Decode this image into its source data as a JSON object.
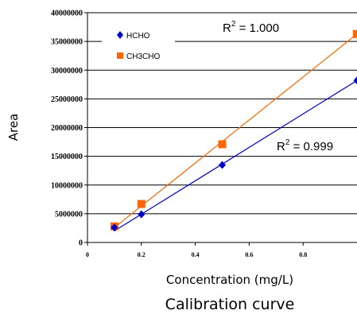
{
  "chart_data": {
    "type": "scatter",
    "xlabel": "Concentration (mg/L)",
    "ylabel": "Area",
    "caption": "Calibration curve",
    "xlim": [
      0,
      1.0
    ],
    "ylim": [
      0,
      40000000
    ],
    "x_ticks": [
      "0",
      "0.2",
      "0.4",
      "0.6",
      "0.8"
    ],
    "y_ticks": [
      "0",
      "5000000",
      "10000000",
      "15000000",
      "20000000",
      "25000000",
      "30000000",
      "35000000",
      "40000000"
    ],
    "grid": "horizontal",
    "legend_position": "top-left",
    "series": [
      {
        "name": "HCHO",
        "marker": "diamond",
        "color": "#0000cc",
        "x": [
          0.1,
          0.2,
          0.5,
          1.0
        ],
        "y": [
          2600000,
          4900000,
          13500000,
          28200000
        ],
        "fit_line": {
          "x": [
            0.1,
            1.0
          ],
          "y": [
            2000000,
            28200000
          ]
        },
        "r2_label": "R",
        "r2_sup": "2",
        "r2_value": " = 0.999"
      },
      {
        "name": "CH3CHO",
        "marker": "square",
        "color": "#ff6600",
        "x": [
          0.1,
          0.2,
          0.5,
          1.0
        ],
        "y": [
          2800000,
          6700000,
          17100000,
          36300000
        ],
        "fit_line": {
          "x": [
            0.1,
            1.0
          ],
          "y": [
            2600000,
            36300000
          ]
        },
        "r2_label": "R",
        "r2_sup": "2",
        "r2_value": " = 1.000"
      }
    ]
  }
}
